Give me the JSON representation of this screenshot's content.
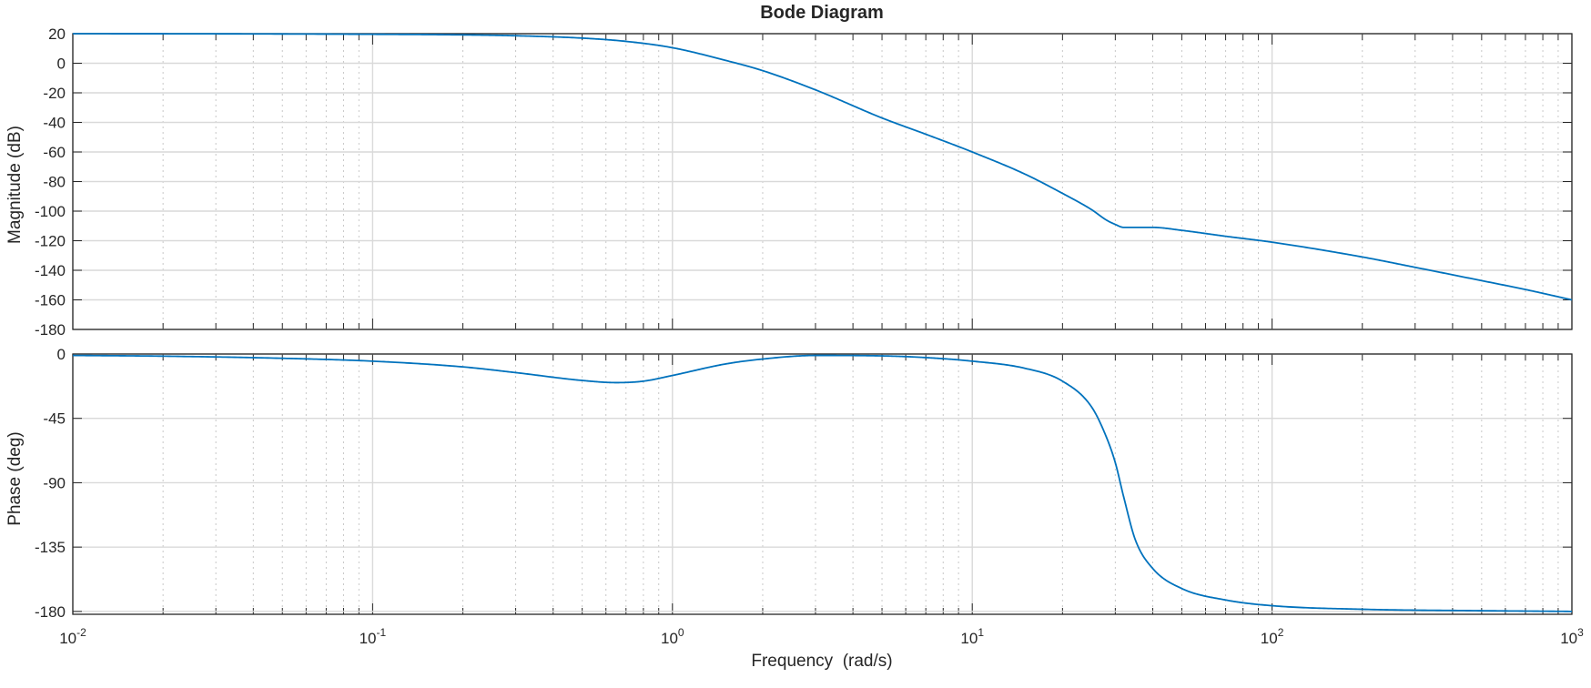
{
  "chart_data": {
    "type": "line",
    "title": "Bode Diagram",
    "xlabel": "Frequency  (rad/s)",
    "x_scale": "log",
    "xlim": [
      0.01,
      1000
    ],
    "x_tick_labels": [
      {
        "base": "10",
        "exp": "-2"
      },
      {
        "base": "10",
        "exp": "-1"
      },
      {
        "base": "10",
        "exp": "0"
      },
      {
        "base": "10",
        "exp": "1"
      },
      {
        "base": "10",
        "exp": "2"
      },
      {
        "base": "10",
        "exp": "3"
      }
    ],
    "grid": true,
    "line_color": "#0072BD",
    "panels": [
      {
        "ylabel": "Magnitude (dB)",
        "ylim": [
          -180,
          20
        ],
        "y_ticks": [
          20,
          0,
          -20,
          -40,
          -60,
          -80,
          -100,
          -120,
          -140,
          -160,
          -180
        ],
        "x": [
          0.01,
          0.03,
          0.1,
          0.2,
          0.3,
          0.5,
          0.7,
          1,
          1.5,
          2,
          3,
          5,
          7,
          10,
          15,
          20,
          25,
          28,
          30,
          32,
          35,
          40,
          50,
          70,
          100,
          200,
          300,
          500,
          700,
          1000
        ],
        "y": [
          20,
          19.9,
          19.6,
          19.2,
          18.6,
          17,
          14.8,
          10.5,
          2,
          -5,
          -18,
          -37,
          -48,
          -60,
          -75,
          -88,
          -99,
          -106,
          -109,
          -111,
          -111,
          -111,
          -113,
          -117,
          -121,
          -131,
          -138,
          -147,
          -153,
          -160
        ]
      },
      {
        "ylabel": "Phase (deg)",
        "ylim": [
          -182,
          0
        ],
        "y_ticks": [
          0,
          -45,
          -90,
          -135,
          -180
        ],
        "x": [
          0.01,
          0.02,
          0.05,
          0.1,
          0.2,
          0.3,
          0.5,
          0.65,
          0.8,
          1,
          1.5,
          2,
          3,
          5,
          7,
          10,
          15,
          20,
          25,
          28,
          30,
          32,
          35,
          40,
          50,
          70,
          100,
          200,
          500,
          1000
        ],
        "y": [
          -1,
          -1.5,
          -3,
          -5,
          -9,
          -13,
          -18.5,
          -20,
          -19,
          -15,
          -7,
          -3.5,
          -1,
          -1.3,
          -2.5,
          -5,
          -10,
          -19,
          -37,
          -58,
          -76,
          -100,
          -130,
          -150,
          -164,
          -172,
          -176,
          -178.5,
          -179.5,
          -180
        ]
      }
    ]
  }
}
